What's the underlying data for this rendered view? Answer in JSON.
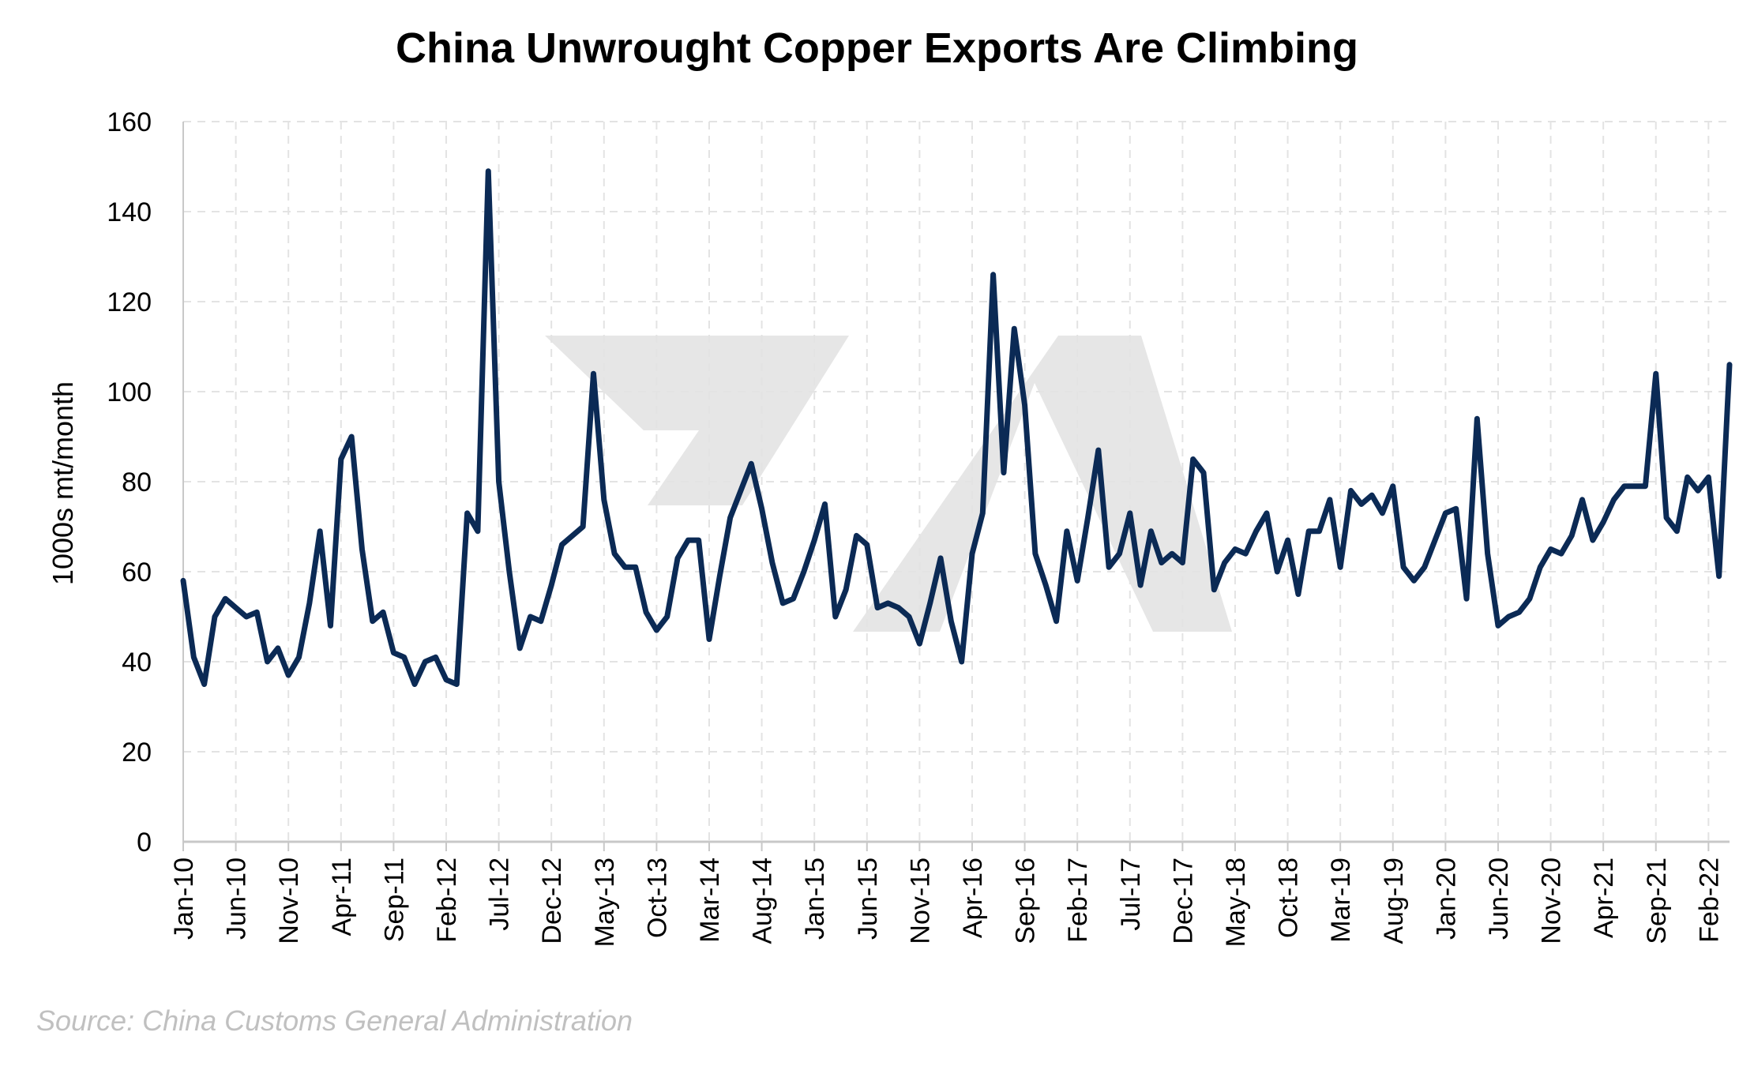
{
  "colors": {
    "line": "#0b2a55",
    "grid": "#e3e3e3",
    "axis": "#c8c8c8",
    "watermark": "#e6e6e6"
  },
  "source": "Source: China Customs General Administration",
  "chart_data": {
    "type": "line",
    "title": "China Unwrought Copper Exports Are Climbing",
    "xlabel": "",
    "ylabel": "1000s mt/month",
    "ylim": [
      0,
      160
    ],
    "yticks": [
      0,
      20,
      40,
      60,
      80,
      100,
      120,
      140,
      160
    ],
    "grid": true,
    "x_start": "Jan-10",
    "x_end": "Mar-22",
    "x_tick_labels": [
      "Jan-10",
      "Jun-10",
      "Nov-10",
      "Apr-11",
      "Sep-11",
      "Feb-12",
      "Jul-12",
      "Dec-12",
      "May-13",
      "Oct-13",
      "Mar-14",
      "Aug-14",
      "Jan-15",
      "Jun-15",
      "Nov-15",
      "Apr-16",
      "Sep-16",
      "Feb-17",
      "Jul-17",
      "Dec-17",
      "May-18",
      "Oct-18",
      "Mar-19",
      "Aug-19",
      "Jan-20",
      "Jun-20",
      "Nov-20",
      "Apr-21",
      "Sep-21",
      "Feb-22"
    ],
    "series": [
      {
        "values": [
          58,
          41,
          35,
          50,
          54,
          52,
          50,
          51,
          40,
          43,
          37,
          41,
          53,
          69,
          48,
          85,
          90,
          65,
          49,
          51,
          42,
          41,
          35,
          40,
          41,
          36,
          35,
          73,
          69,
          149,
          80,
          60,
          43,
          50,
          49,
          57,
          66,
          68,
          70,
          104,
          76,
          64,
          61,
          61,
          51,
          47,
          50,
          63,
          67,
          67,
          45,
          59,
          72,
          78,
          84,
          74,
          62,
          53,
          54,
          60,
          67,
          75,
          50,
          56,
          68,
          66,
          52,
          53,
          52,
          50,
          44,
          53,
          63,
          49,
          40,
          64,
          73,
          126,
          82,
          114,
          97,
          64,
          57,
          49,
          69,
          58,
          72,
          87,
          61,
          64,
          73,
          57,
          69,
          62,
          64,
          62,
          85,
          82,
          56,
          62,
          65,
          64,
          69,
          73,
          60,
          67,
          55,
          69,
          69,
          76,
          61,
          78,
          75,
          77,
          73,
          79,
          61,
          58,
          61,
          67,
          73,
          74,
          54,
          94,
          64,
          48,
          50,
          51,
          54,
          61,
          65,
          64,
          68,
          76,
          67,
          71,
          76,
          79,
          79,
          79,
          104,
          72,
          69,
          81,
          78,
          81,
          59,
          106
        ]
      }
    ]
  }
}
